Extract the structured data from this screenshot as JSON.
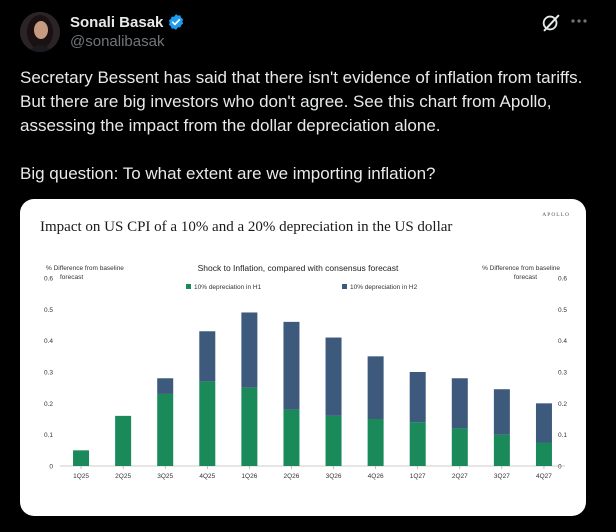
{
  "author": {
    "name": "Sonali Basak",
    "handle": "@sonalibasak",
    "verified": true,
    "verified_color": "#1d9bf0"
  },
  "tweet": {
    "text": "Secretary Bessent has said that there isn't evidence of inflation from tariffs. But there are big investors who don't agree. See this chart from Apollo, assessing the impact from the dollar depreciation alone.\n\nBig question: To what extent are we importing inflation?"
  },
  "icons": {
    "grok": "grok-icon",
    "more": "more-icon"
  },
  "chart_brand": "APOLLO",
  "chart_data": {
    "type": "bar",
    "stacked": true,
    "title": "Impact on US CPI of a 10% and a 20% depreciation in the US dollar",
    "subtitle": "Shock to Inflation, compared with consensus forecast",
    "ylabel_left": "% Difference from baseline forecast",
    "ylabel_right": "% Difference from baseline forecast",
    "ylim": [
      0,
      0.6
    ],
    "yticks": [
      "0",
      "0.1",
      "0.2",
      "0.3",
      "0.4",
      "0.5",
      "0.6"
    ],
    "grid": false,
    "legend_position": "top",
    "categories": [
      "1Q25",
      "2Q25",
      "3Q25",
      "4Q25",
      "1Q26",
      "2Q26",
      "3Q26",
      "4Q26",
      "1Q27",
      "2Q27",
      "3Q27",
      "4Q27"
    ],
    "series": [
      {
        "name": "10% depreciation in H1",
        "color": "#1a8a5a",
        "values": [
          0.05,
          0.16,
          0.23,
          0.27,
          0.25,
          0.18,
          0.16,
          0.15,
          0.14,
          0.12,
          0.1,
          0.075
        ]
      },
      {
        "name": "10% depreciation in H2",
        "color": "#3d5a7c",
        "values": [
          0,
          0,
          0.05,
          0.16,
          0.24,
          0.28,
          0.25,
          0.2,
          0.16,
          0.16,
          0.145,
          0.125
        ]
      }
    ]
  }
}
